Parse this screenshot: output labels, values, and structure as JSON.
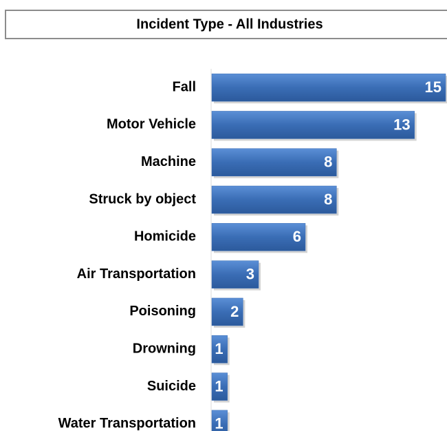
{
  "chart_data": {
    "type": "barh",
    "title": "Incident Type - All Industries",
    "categories": [
      "Fall",
      "Motor Vehicle",
      "Machine",
      "Struck by object",
      "Homicide",
      "Air Transportation",
      "Poisoning",
      "Drowning",
      "Suicide",
      "Water Transportation"
    ],
    "values": [
      15,
      13,
      8,
      8,
      6,
      3,
      2,
      1,
      1,
      1
    ],
    "color": "#3a6db5"
  }
}
